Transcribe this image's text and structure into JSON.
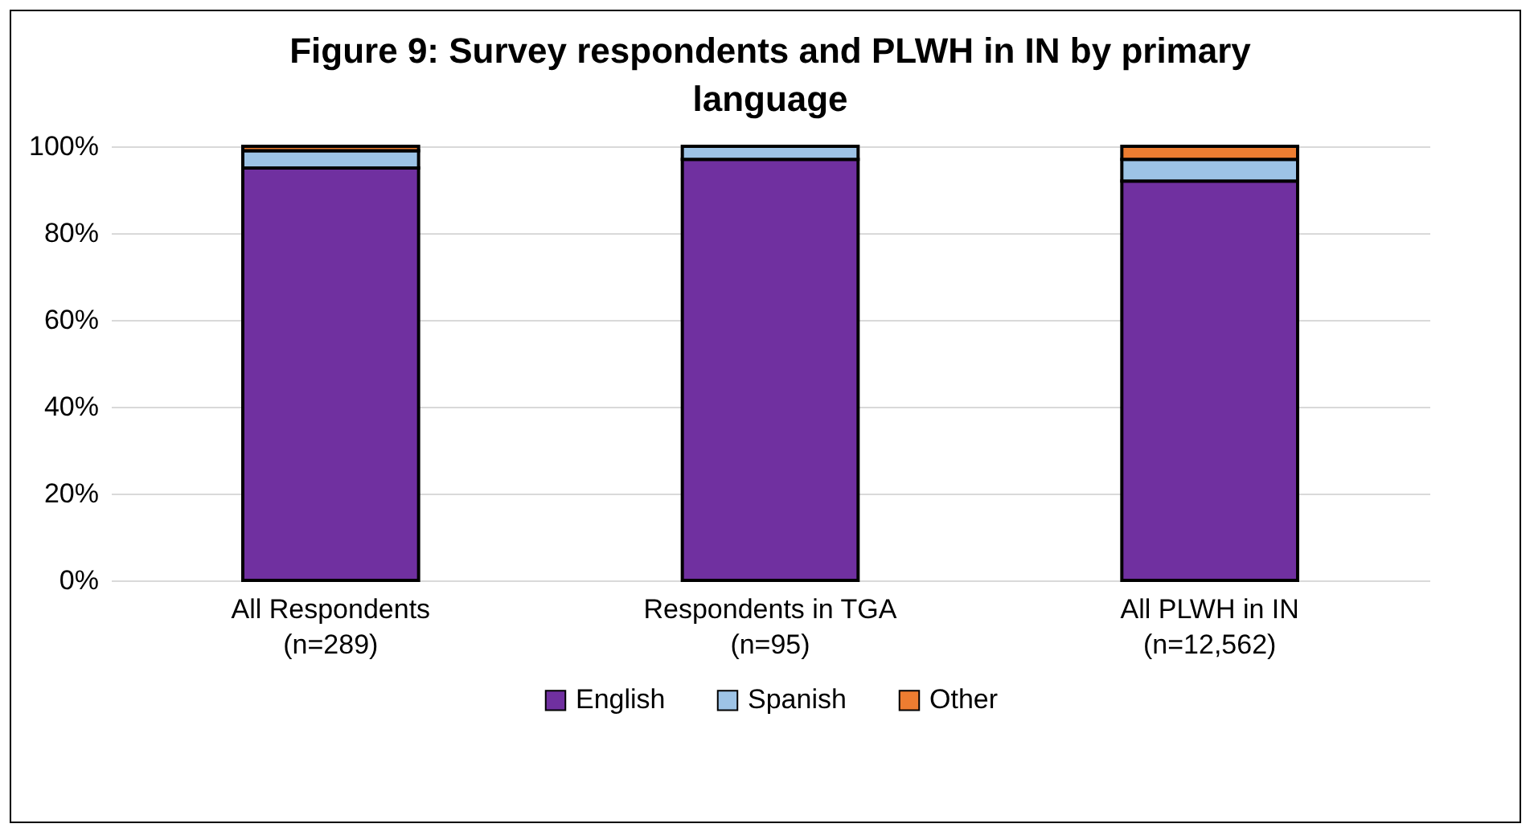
{
  "chart_data": {
    "type": "bar",
    "title": "Figure 9: Survey respondents and PLWH in IN by primary language",
    "categories": [
      "All Respondents\n(n=289)",
      "Respondents in TGA\n(n=95)",
      "All PLWH in IN\n(n=12,562)"
    ],
    "stacked": true,
    "series": [
      {
        "name": "English",
        "color": "#7030a0",
        "values": [
          95,
          97,
          92
        ]
      },
      {
        "name": "Spanish",
        "color": "#9dc3e6",
        "values": [
          4,
          3,
          5
        ]
      },
      {
        "name": "Other",
        "color": "#ed7d31",
        "values": [
          1,
          0,
          3
        ]
      }
    ],
    "ylim": [
      0,
      100
    ],
    "yticks": [
      {
        "value": 0,
        "label": "0%"
      },
      {
        "value": 20,
        "label": "20%"
      },
      {
        "value": 40,
        "label": "40%"
      },
      {
        "value": 60,
        "label": "60%"
      },
      {
        "value": 80,
        "label": "80%"
      },
      {
        "value": 100,
        "label": "100%"
      }
    ],
    "grid": "y",
    "legend": "bottom"
  }
}
